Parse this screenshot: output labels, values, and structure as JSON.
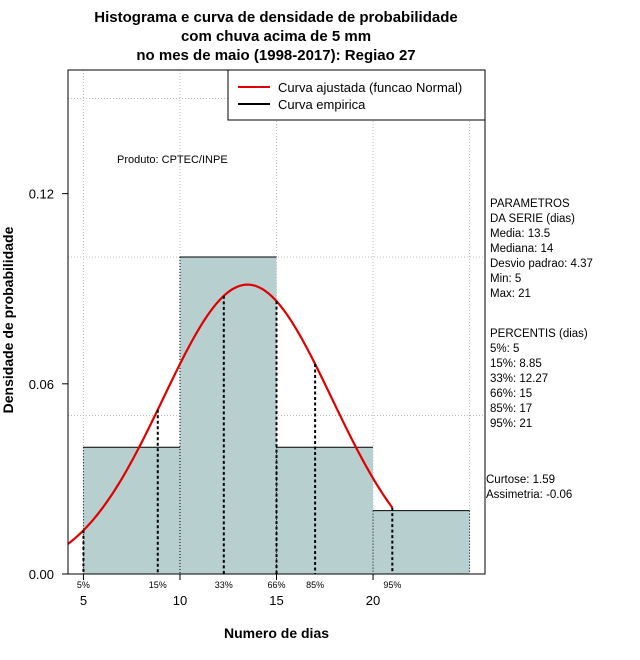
{
  "chart_data": {
    "type": "bar",
    "title_lines": [
      "Histograma e curva de densidade de probabilidade",
      "com chuva acima de 5 mm",
      "no mes de maio (1998-2017): Regiao 27"
    ],
    "xlabel": "Numero de dias",
    "ylabel": "Densidade de probabilidade",
    "xlim": [
      4.2,
      25.8
    ],
    "ylim": [
      0,
      0.159
    ],
    "x_ticks": [
      5,
      10,
      15,
      20
    ],
    "x_tick_labels": [
      "5",
      "10",
      "15",
      "20"
    ],
    "y_ticks": [
      0.0,
      0.06,
      0.12
    ],
    "y_tick_labels": [
      "0.00",
      "0.06",
      "0.12"
    ],
    "grid": true,
    "grid_x": [
      5,
      10,
      15,
      20,
      25
    ],
    "grid_y": [
      0.0,
      0.05,
      0.1,
      0.15
    ],
    "histogram": {
      "bins": [
        {
          "x0": 5,
          "x1": 10,
          "density": 0.04
        },
        {
          "x0": 10,
          "x1": 15,
          "density": 0.1
        },
        {
          "x0": 15,
          "x1": 20,
          "density": 0.04
        },
        {
          "x0": 20,
          "x1": 25,
          "density": 0.02
        }
      ],
      "fill": "#b7cfcf"
    },
    "normal_curve": {
      "mean": 13.5,
      "sd": 4.37,
      "x_range": [
        4.2,
        21
      ],
      "color": "#e00000"
    },
    "percentiles": [
      {
        "label": "5%",
        "x": 5
      },
      {
        "label": "15%",
        "x": 8.85
      },
      {
        "label": "33%",
        "x": 12.27
      },
      {
        "label": "66%",
        "x": 15
      },
      {
        "label": "85%",
        "x": 17
      },
      {
        "label": "95%",
        "x": 21
      }
    ],
    "legend": {
      "placement": "top-right",
      "entries": [
        {
          "label": "Curva ajustada (funcao Normal)",
          "color": "#e00000"
        },
        {
          "label": "Curva empirica",
          "color": "#000000"
        }
      ]
    },
    "annotation": "Produto: CPTEC/INPE",
    "side_panel": {
      "params_lines": [
        "PARAMETROS",
        "DA SERIE (dias)",
        "   Media: 13.5",
        "   Mediana: 14",
        "   Desvio padrao: 4.37",
        "   Min: 5",
        "   Max: 21"
      ],
      "percentis_lines": [
        "PERCENTIS (dias)",
        "   5%: 5",
        "   15%: 8.85",
        "   33%: 12.27",
        "   66%: 15",
        "   85%: 17",
        "   95%: 21"
      ],
      "shape_lines": [
        "   Curtose: 1.59",
        "Assimetria: -0.06"
      ]
    }
  }
}
